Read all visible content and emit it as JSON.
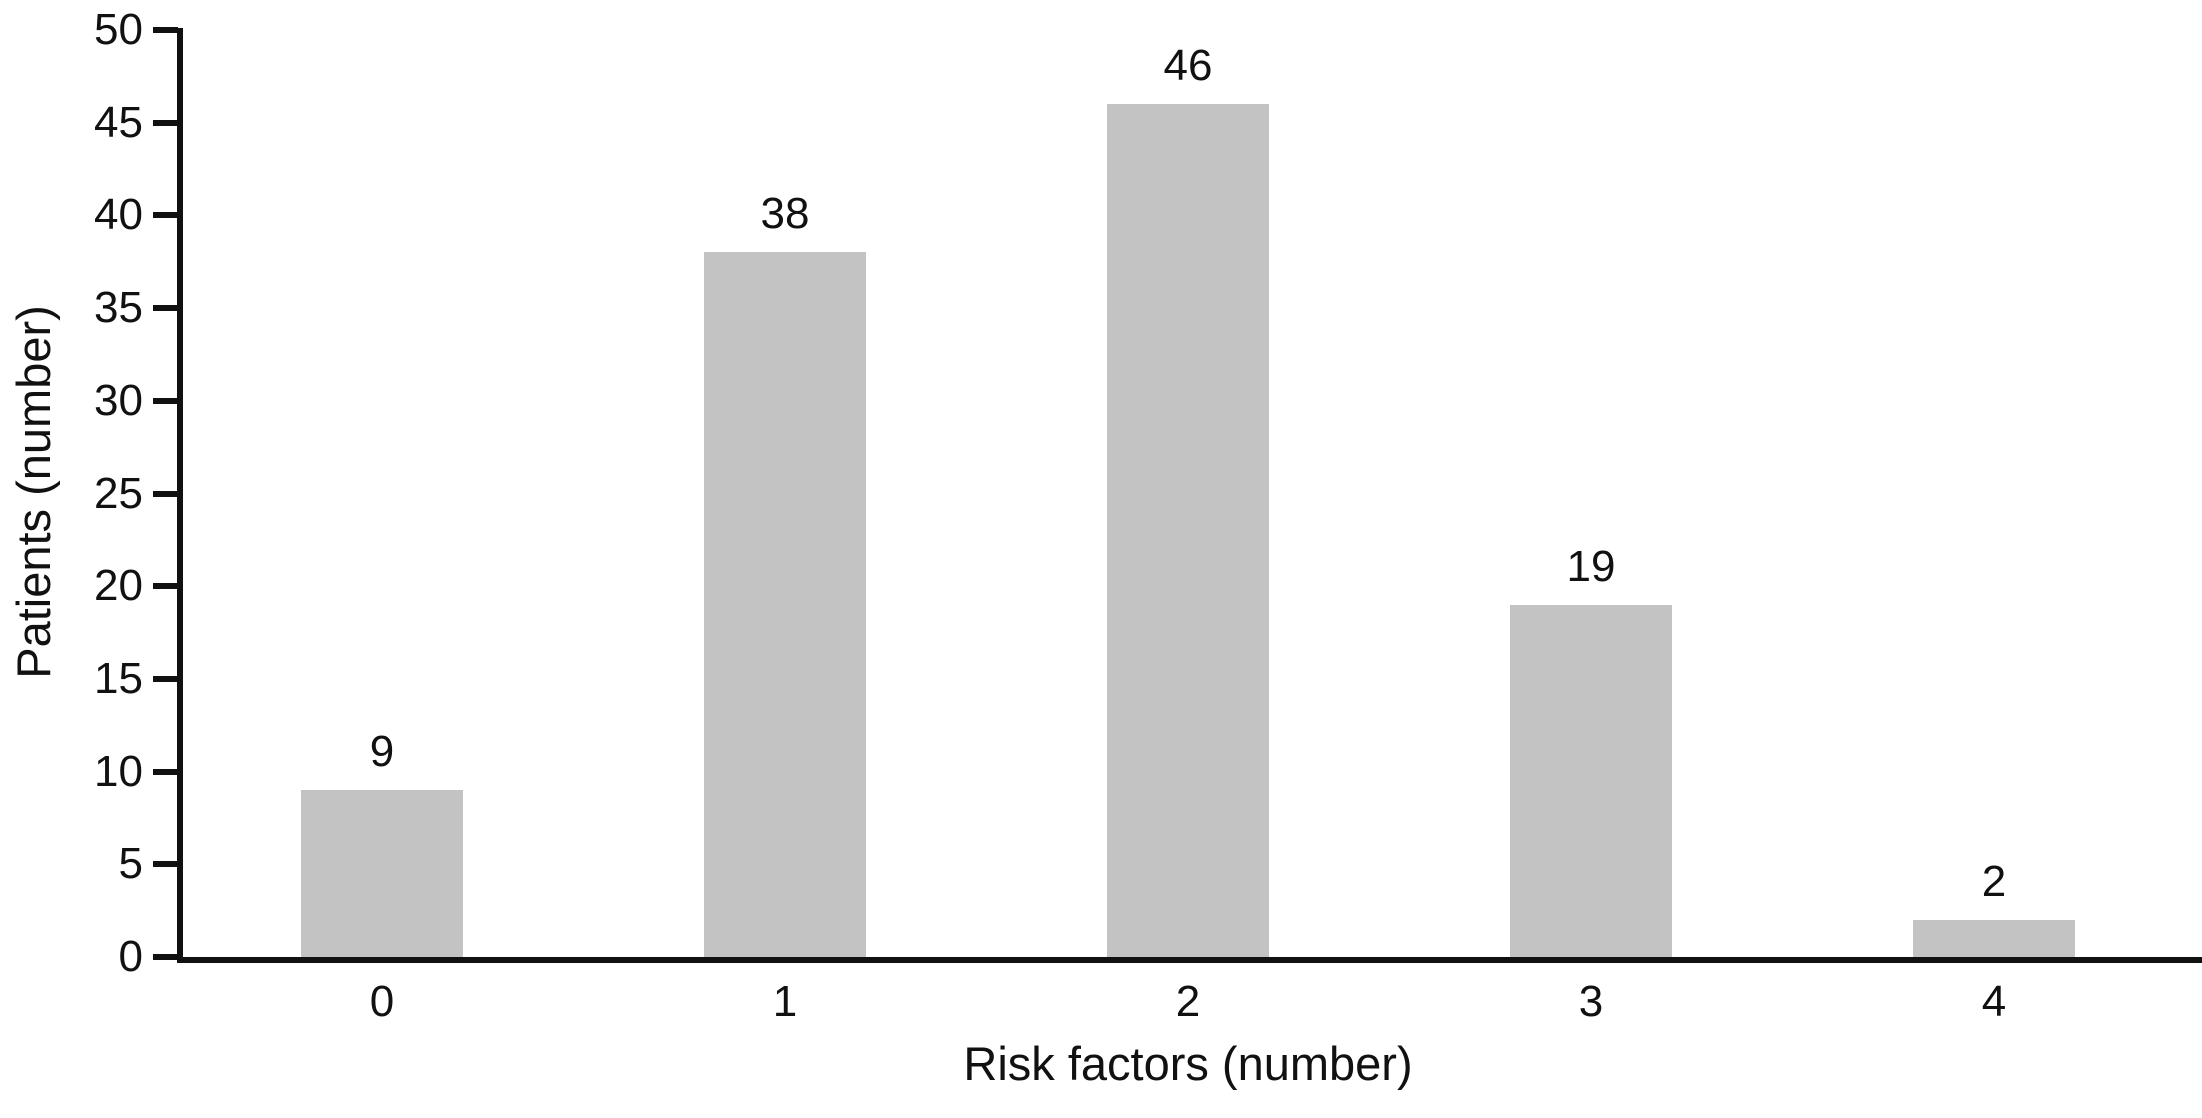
{
  "chart_data": {
    "type": "bar",
    "title": "",
    "xlabel": "Risk factors (number)",
    "ylabel": "Patients (number)",
    "categories": [
      "0",
      "1",
      "2",
      "3",
      "4"
    ],
    "values": [
      9,
      38,
      46,
      19,
      2
    ],
    "data_labels": [
      "9",
      "38",
      "46",
      "19",
      "2"
    ],
    "ylim": [
      0,
      50
    ],
    "yticks": [
      0,
      5,
      10,
      15,
      20,
      25,
      30,
      35,
      40,
      45,
      50
    ],
    "grid": false,
    "legend": null,
    "bar_color": "#c3c3c3",
    "axis_color": "#111111",
    "text_color": "#111111",
    "background_color": "#ffffff"
  }
}
